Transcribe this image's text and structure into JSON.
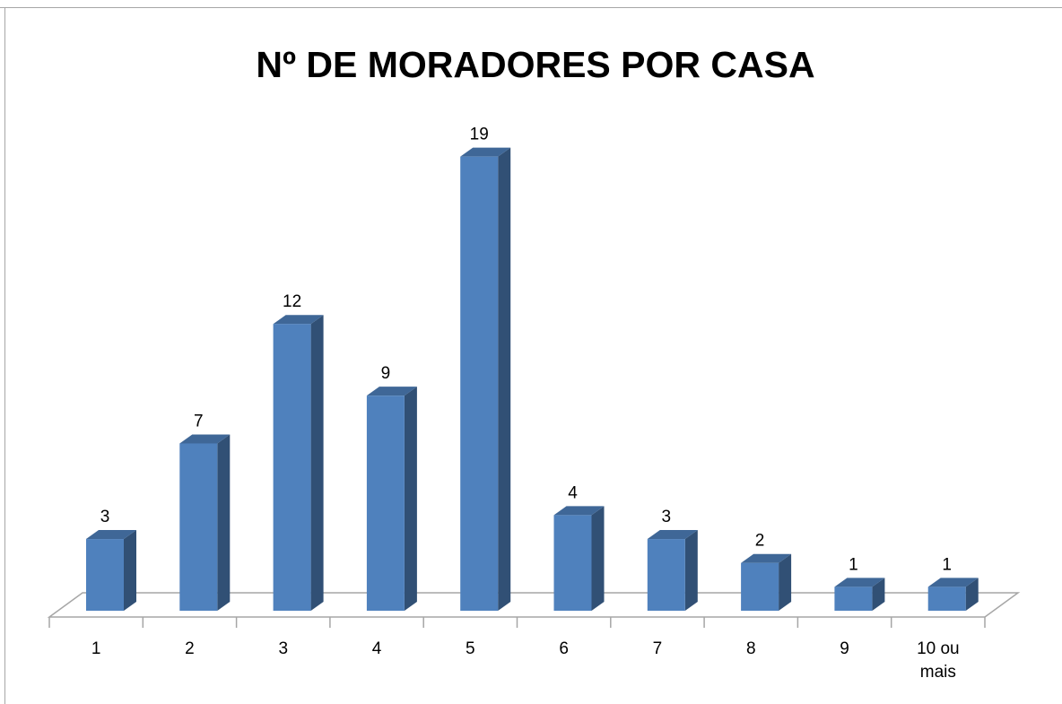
{
  "chart_data": {
    "type": "bar3d",
    "title": "Nº DE MORADORES POR CASA",
    "categories": [
      "1",
      "2",
      "3",
      "4",
      "5",
      "6",
      "7",
      "8",
      "9",
      "10 ou mais"
    ],
    "values": [
      3,
      7,
      12,
      9,
      19,
      4,
      3,
      2,
      1,
      1
    ],
    "color": "#4f81bd"
  }
}
